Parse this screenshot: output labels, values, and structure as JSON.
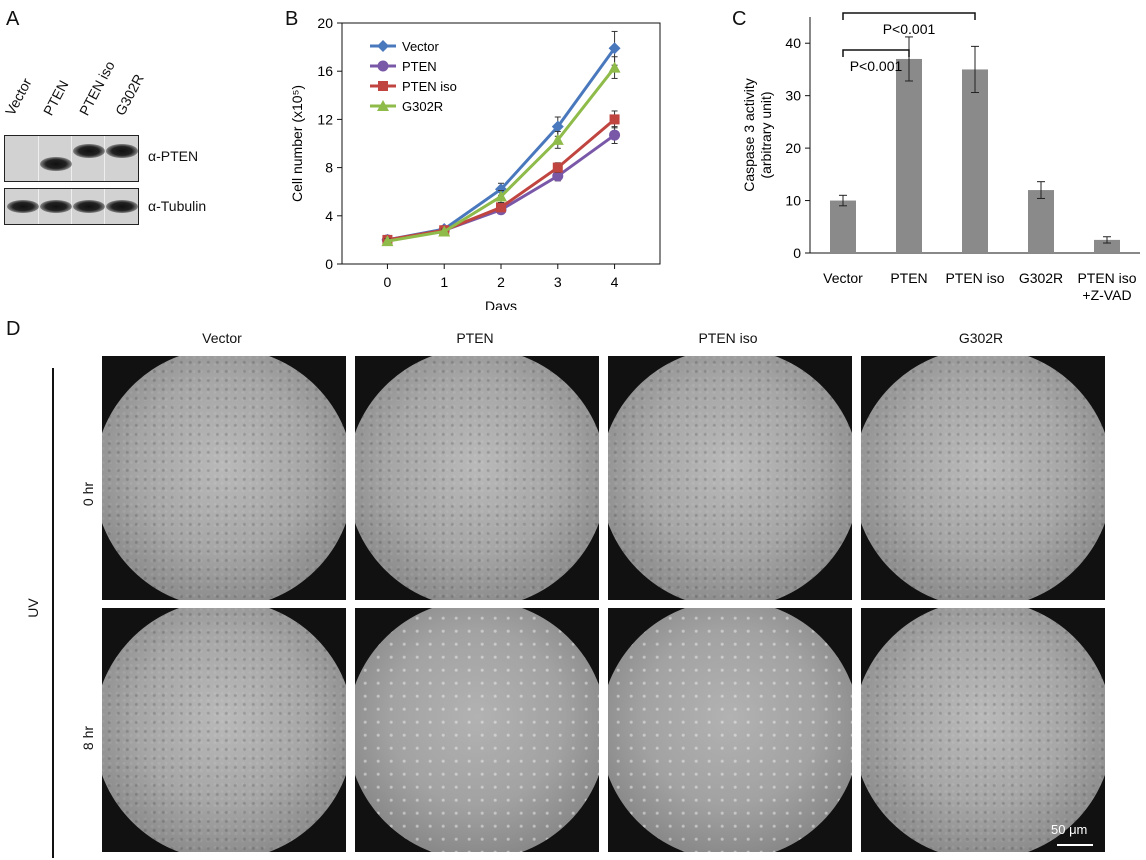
{
  "panel_letters": {
    "a": "A",
    "b": "B",
    "c": "C",
    "d": "D"
  },
  "panel_a": {
    "lanes": [
      "Vector",
      "PTEN",
      "PTEN iso",
      "G302R"
    ],
    "blots": [
      {
        "label": "α-PTEN",
        "bands": [
          null,
          "low",
          "high",
          "high"
        ]
      },
      {
        "label": "α-Tubulin",
        "bands": [
          "equal",
          "equal",
          "equal",
          "equal"
        ]
      }
    ]
  },
  "chart_data": [
    {
      "panel": "B",
      "type": "line",
      "xlabel": "Days",
      "ylabel": "Cell number (x10⁵)",
      "x": [
        0,
        1,
        2,
        3,
        4
      ],
      "xlim": [
        -0.8,
        4.8
      ],
      "ylim": [
        0,
        20
      ],
      "yticks": [
        0,
        4,
        8,
        12,
        16,
        20
      ],
      "xticks": [
        0,
        1,
        2,
        3,
        4
      ],
      "legend_position": "top-left",
      "series": [
        {
          "name": "Vector",
          "color": "#4a78bd",
          "marker": "diamond",
          "values": [
            2.0,
            2.9,
            6.2,
            11.4,
            17.9
          ],
          "errors": [
            0.2,
            0.2,
            0.5,
            0.8,
            1.4
          ]
        },
        {
          "name": "PTEN",
          "color": "#7a58a8",
          "marker": "circle",
          "values": [
            2.0,
            2.8,
            4.5,
            7.3,
            10.7
          ],
          "errors": [
            0.2,
            0.2,
            0.3,
            0.4,
            0.7
          ]
        },
        {
          "name": "PTEN iso",
          "color": "#c0443f",
          "marker": "square",
          "values": [
            2.0,
            2.8,
            4.7,
            8.0,
            12.0
          ],
          "errors": [
            0.2,
            0.2,
            0.3,
            0.4,
            0.7
          ]
        },
        {
          "name": "G302R",
          "color": "#8fbb4a",
          "marker": "triangle",
          "values": [
            1.9,
            2.7,
            5.6,
            10.3,
            16.3
          ],
          "errors": [
            0.2,
            0.2,
            0.5,
            0.7,
            0.9
          ]
        }
      ]
    },
    {
      "panel": "C",
      "type": "bar",
      "ylabel_line1": "Caspase 3 activity",
      "ylabel_line2": "(arbitrary unit)",
      "categories": [
        "Vector",
        "PTEN",
        "PTEN iso",
        "G302R",
        "PTEN iso +Z-VAD"
      ],
      "category_lines": [
        [
          "Vector"
        ],
        [
          "PTEN"
        ],
        [
          "PTEN iso"
        ],
        [
          "G302R"
        ],
        [
          "PTEN iso",
          "+Z-VAD"
        ]
      ],
      "values": [
        10.0,
        37.0,
        35.0,
        12.0,
        2.5
      ],
      "errors": [
        1.0,
        4.2,
        4.4,
        1.6,
        0.6
      ],
      "ylim": [
        0,
        45
      ],
      "yticks": [
        0,
        10,
        20,
        30,
        40
      ],
      "bar_color": "#8a8a8a",
      "significance": [
        {
          "from": 0,
          "to": 1,
          "label": "P<0.001"
        },
        {
          "from": 0,
          "to": 2,
          "label": "P<0.001"
        }
      ]
    }
  ],
  "panel_d": {
    "columns": [
      "Vector",
      "PTEN",
      "PTEN iso",
      "G302R"
    ],
    "group_label": "UV",
    "rows": [
      {
        "label": "0 hr",
        "density": [
          "confluent",
          "confluent",
          "confluent",
          "confluent"
        ]
      },
      {
        "label": "8 hr",
        "density": [
          "confluent",
          "sparse",
          "sparse",
          "confluent"
        ]
      }
    ],
    "scale_bar": "50 μm"
  }
}
